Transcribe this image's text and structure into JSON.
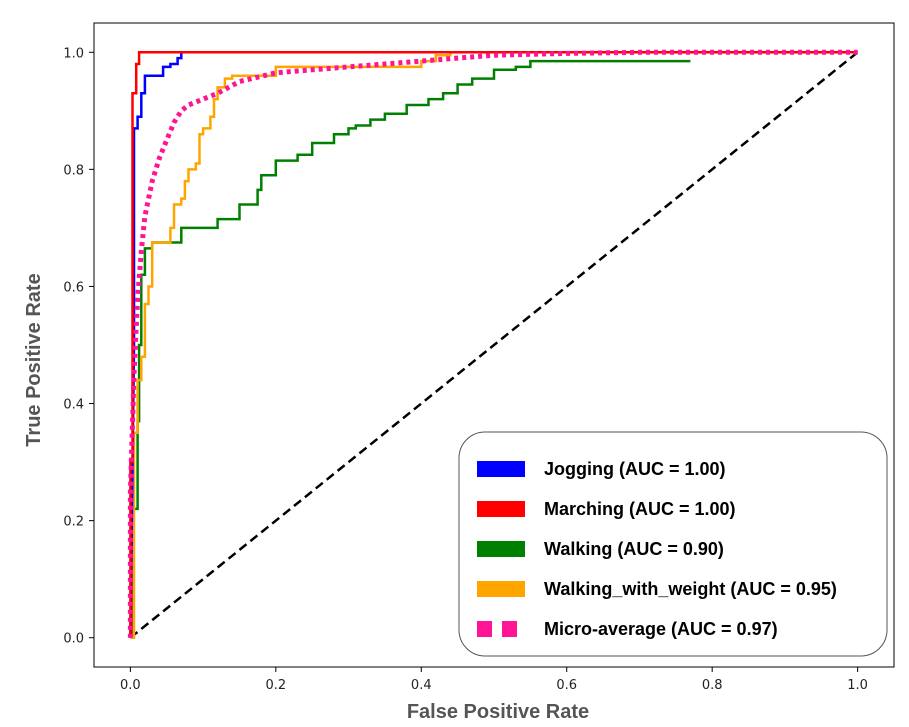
{
  "chart_data": {
    "type": "line",
    "title": "",
    "xlabel": "False Positive Rate",
    "ylabel": "True Positive Rate",
    "xlim": [
      -0.05,
      1.05
    ],
    "ylim": [
      -0.05,
      1.05
    ],
    "xticks": [
      0.0,
      0.2,
      0.4,
      0.6,
      0.8,
      1.0
    ],
    "yticks": [
      0.0,
      0.2,
      0.4,
      0.6,
      0.8,
      1.0
    ],
    "xtick_labels": [
      "0.0",
      "0.2",
      "0.4",
      "0.6",
      "0.8",
      "1.0"
    ],
    "ytick_labels": [
      "0.0",
      "0.2",
      "0.4",
      "0.6",
      "0.8",
      "1.0"
    ],
    "grid": false,
    "legend_position": "bottom-right",
    "series": [
      {
        "name": "Jogging (AUC = 1.00)",
        "color": "#0000ff",
        "style": "solid",
        "x": [
          0,
          0.005,
          0.005,
          0.01,
          0.01,
          0.015,
          0.015,
          0.02,
          0.02,
          0.045,
          0.045,
          0.055,
          0.055,
          0.065,
          0.065,
          0.07,
          0.07,
          1.0
        ],
        "y": [
          0,
          0.5,
          0.87,
          0.87,
          0.89,
          0.89,
          0.93,
          0.93,
          0.96,
          0.96,
          0.975,
          0.975,
          0.98,
          0.98,
          0.99,
          0.99,
          1.0,
          1.0
        ]
      },
      {
        "name": "Marching (AUC = 1.00)",
        "color": "#ff0000",
        "style": "solid",
        "x": [
          0,
          0.0,
          0.003,
          0.003,
          0.008,
          0.008,
          0.012,
          0.012,
          1.0
        ],
        "y": [
          0,
          0.3,
          0.3,
          0.93,
          0.93,
          0.98,
          0.98,
          1.0,
          1.0
        ]
      },
      {
        "name": "Walking (AUC = 0.90)",
        "color": "#008000",
        "style": "solid",
        "x": [
          0.002,
          0.002,
          0.01,
          0.01,
          0.012,
          0.012,
          0.015,
          0.015,
          0.02,
          0.02,
          0.03,
          0.03,
          0.07,
          0.07,
          0.1,
          0.1,
          0.12,
          0.12,
          0.15,
          0.15,
          0.16,
          0.16,
          0.175,
          0.175,
          0.18,
          0.18,
          0.2,
          0.2,
          0.23,
          0.23,
          0.25,
          0.25,
          0.28,
          0.28,
          0.3,
          0.3,
          0.31,
          0.31,
          0.33,
          0.33,
          0.35,
          0.35,
          0.36,
          0.36,
          0.38,
          0.38,
          0.41,
          0.41,
          0.43,
          0.43,
          0.45,
          0.45,
          0.47,
          0.47,
          0.5,
          0.5,
          0.53,
          0.53,
          0.55,
          0.55,
          0.58,
          0.58,
          0.65,
          0.65,
          0.77,
          0.77
        ],
        "y": [
          0.0,
          0.22,
          0.22,
          0.37,
          0.37,
          0.5,
          0.5,
          0.62,
          0.62,
          0.665,
          0.665,
          0.675,
          0.675,
          0.7,
          0.7,
          0.7,
          0.7,
          0.715,
          0.715,
          0.74,
          0.74,
          0.74,
          0.74,
          0.765,
          0.765,
          0.79,
          0.79,
          0.815,
          0.815,
          0.825,
          0.825,
          0.845,
          0.845,
          0.86,
          0.86,
          0.87,
          0.87,
          0.875,
          0.875,
          0.885,
          0.885,
          0.895,
          0.895,
          0.895,
          0.895,
          0.91,
          0.91,
          0.92,
          0.92,
          0.93,
          0.93,
          0.945,
          0.945,
          0.955,
          0.955,
          0.97,
          0.97,
          0.975,
          0.975,
          0.985,
          0.985,
          0.985,
          0.985,
          0.985,
          0.985,
          0.985
        ]
      },
      {
        "name": "Walking_with_weight (AUC = 0.95)",
        "color": "#ffa500",
        "style": "solid",
        "x": [
          0.0,
          0.005,
          0.005,
          0.01,
          0.01,
          0.015,
          0.015,
          0.02,
          0.02,
          0.025,
          0.025,
          0.03,
          0.03,
          0.055,
          0.055,
          0.06,
          0.06,
          0.07,
          0.07,
          0.075,
          0.075,
          0.08,
          0.08,
          0.09,
          0.09,
          0.095,
          0.095,
          0.1,
          0.1,
          0.11,
          0.11,
          0.115,
          0.115,
          0.12,
          0.12,
          0.13,
          0.13,
          0.14,
          0.14,
          0.2,
          0.2,
          0.3,
          0.3,
          0.4,
          0.4,
          0.42,
          0.42,
          0.44,
          0.44,
          1.0
        ],
        "y": [
          0.0,
          0.0,
          0.35,
          0.35,
          0.44,
          0.44,
          0.48,
          0.48,
          0.57,
          0.57,
          0.6,
          0.6,
          0.675,
          0.675,
          0.7,
          0.7,
          0.74,
          0.74,
          0.75,
          0.75,
          0.78,
          0.78,
          0.8,
          0.8,
          0.81,
          0.81,
          0.86,
          0.86,
          0.87,
          0.87,
          0.89,
          0.89,
          0.92,
          0.92,
          0.94,
          0.94,
          0.955,
          0.955,
          0.96,
          0.96,
          0.975,
          0.975,
          0.975,
          0.975,
          0.985,
          0.985,
          0.995,
          0.995,
          1.0,
          1.0
        ]
      },
      {
        "name": "Micro-average (AUC = 0.97)",
        "color": "#ff1493",
        "style": "dotted",
        "x": [
          0.0,
          0.0,
          0.005,
          0.01,
          0.015,
          0.02,
          0.03,
          0.04,
          0.05,
          0.06,
          0.07,
          0.08,
          0.1,
          0.12,
          0.15,
          0.2,
          0.25,
          0.3,
          0.35,
          0.4,
          0.45,
          0.5,
          0.6,
          0.7,
          0.8,
          0.9,
          1.0
        ],
        "y": [
          0.0,
          0.25,
          0.45,
          0.58,
          0.66,
          0.72,
          0.78,
          0.82,
          0.85,
          0.88,
          0.9,
          0.91,
          0.92,
          0.93,
          0.95,
          0.965,
          0.97,
          0.975,
          0.98,
          0.985,
          0.99,
          0.995,
          0.998,
          1.0,
          1.0,
          1.0,
          1.0
        ]
      },
      {
        "name": "chance",
        "color": "#000000",
        "style": "dashed",
        "x": [
          0.0,
          1.0
        ],
        "y": [
          0.0,
          1.0
        ]
      }
    ],
    "legend": [
      {
        "label": "Jogging (AUC = 1.00)",
        "color": "#0000ff",
        "style": "solid"
      },
      {
        "label": "Marching (AUC = 1.00)",
        "color": "#ff0000",
        "style": "solid"
      },
      {
        "label": "Walking (AUC = 0.90)",
        "color": "#008000",
        "style": "solid"
      },
      {
        "label": "Walking_with_weight (AUC = 0.95)",
        "color": "#ffa500",
        "style": "solid"
      },
      {
        "label": "Micro-average (AUC = 0.97)",
        "color": "#ff1493",
        "style": "dotted"
      }
    ]
  }
}
